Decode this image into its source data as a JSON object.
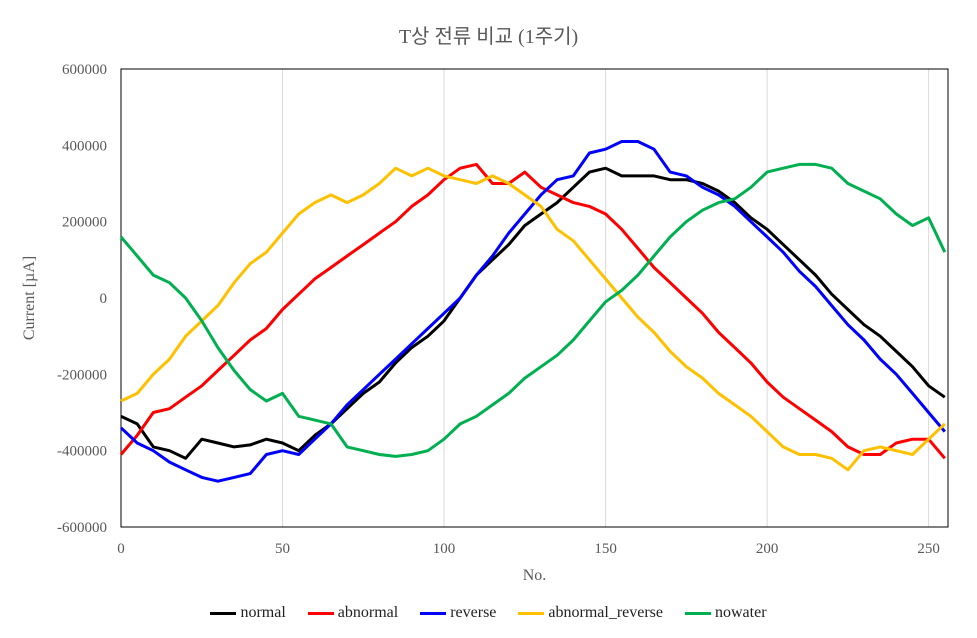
{
  "chart_data": {
    "type": "line",
    "title": "T상 전류 비교 (1주기)",
    "xlabel": "No.",
    "ylabel": "Current [µA]",
    "xlim": [
      0,
      256
    ],
    "ylim": [
      -600000,
      600000
    ],
    "x_ticks": [
      "0",
      "50",
      "100",
      "150",
      "200",
      "250"
    ],
    "y_ticks": [
      "-600000",
      "-400000",
      "-200000",
      "0",
      "200000",
      "400000",
      "600000"
    ],
    "grid": "vertical",
    "legend_position": "bottom",
    "series": [
      {
        "name": "normal",
        "color": "#000000",
        "points": [
          [
            0,
            -310000
          ],
          [
            5,
            -330000
          ],
          [
            10,
            -390000
          ],
          [
            15,
            -400000
          ],
          [
            20,
            -420000
          ],
          [
            25,
            -370000
          ],
          [
            30,
            -380000
          ],
          [
            35,
            -390000
          ],
          [
            40,
            -385000
          ],
          [
            45,
            -370000
          ],
          [
            50,
            -380000
          ],
          [
            55,
            -400000
          ],
          [
            60,
            -360000
          ],
          [
            65,
            -330000
          ],
          [
            70,
            -290000
          ],
          [
            75,
            -250000
          ],
          [
            80,
            -220000
          ],
          [
            85,
            -170000
          ],
          [
            90,
            -130000
          ],
          [
            95,
            -100000
          ],
          [
            100,
            -60000
          ],
          [
            105,
            0
          ],
          [
            110,
            60000
          ],
          [
            115,
            100000
          ],
          [
            120,
            140000
          ],
          [
            125,
            190000
          ],
          [
            130,
            220000
          ],
          [
            135,
            250000
          ],
          [
            140,
            290000
          ],
          [
            145,
            330000
          ],
          [
            150,
            340000
          ],
          [
            155,
            320000
          ],
          [
            160,
            320000
          ],
          [
            165,
            320000
          ],
          [
            170,
            310000
          ],
          [
            175,
            310000
          ],
          [
            180,
            300000
          ],
          [
            185,
            280000
          ],
          [
            190,
            250000
          ],
          [
            195,
            210000
          ],
          [
            200,
            180000
          ],
          [
            205,
            140000
          ],
          [
            210,
            100000
          ],
          [
            215,
            60000
          ],
          [
            220,
            10000
          ],
          [
            225,
            -30000
          ],
          [
            230,
            -70000
          ],
          [
            235,
            -100000
          ],
          [
            240,
            -140000
          ],
          [
            245,
            -180000
          ],
          [
            250,
            -230000
          ],
          [
            255,
            -260000
          ]
        ]
      },
      {
        "name": "abnormal",
        "color": "#ff0000",
        "points": [
          [
            0,
            -410000
          ],
          [
            5,
            -360000
          ],
          [
            10,
            -300000
          ],
          [
            15,
            -290000
          ],
          [
            20,
            -260000
          ],
          [
            25,
            -230000
          ],
          [
            30,
            -190000
          ],
          [
            35,
            -150000
          ],
          [
            40,
            -110000
          ],
          [
            45,
            -80000
          ],
          [
            50,
            -30000
          ],
          [
            55,
            10000
          ],
          [
            60,
            50000
          ],
          [
            65,
            80000
          ],
          [
            70,
            110000
          ],
          [
            75,
            140000
          ],
          [
            80,
            170000
          ],
          [
            85,
            200000
          ],
          [
            90,
            240000
          ],
          [
            95,
            270000
          ],
          [
            100,
            310000
          ],
          [
            105,
            340000
          ],
          [
            110,
            350000
          ],
          [
            115,
            300000
          ],
          [
            120,
            300000
          ],
          [
            125,
            330000
          ],
          [
            130,
            290000
          ],
          [
            135,
            270000
          ],
          [
            140,
            250000
          ],
          [
            145,
            240000
          ],
          [
            150,
            220000
          ],
          [
            155,
            180000
          ],
          [
            160,
            130000
          ],
          [
            165,
            80000
          ],
          [
            170,
            40000
          ],
          [
            175,
            0
          ],
          [
            180,
            -40000
          ],
          [
            185,
            -90000
          ],
          [
            190,
            -130000
          ],
          [
            195,
            -170000
          ],
          [
            200,
            -220000
          ],
          [
            205,
            -260000
          ],
          [
            210,
            -290000
          ],
          [
            215,
            -320000
          ],
          [
            220,
            -350000
          ],
          [
            225,
            -390000
          ],
          [
            230,
            -410000
          ],
          [
            235,
            -410000
          ],
          [
            240,
            -380000
          ],
          [
            245,
            -370000
          ],
          [
            250,
            -370000
          ],
          [
            255,
            -420000
          ]
        ]
      },
      {
        "name": "reverse",
        "color": "#0000ff",
        "points": [
          [
            0,
            -340000
          ],
          [
            5,
            -380000
          ],
          [
            10,
            -400000
          ],
          [
            15,
            -430000
          ],
          [
            20,
            -450000
          ],
          [
            25,
            -470000
          ],
          [
            30,
            -480000
          ],
          [
            35,
            -470000
          ],
          [
            40,
            -460000
          ],
          [
            45,
            -410000
          ],
          [
            50,
            -400000
          ],
          [
            55,
            -410000
          ],
          [
            60,
            -370000
          ],
          [
            65,
            -330000
          ],
          [
            70,
            -280000
          ],
          [
            75,
            -240000
          ],
          [
            80,
            -200000
          ],
          [
            85,
            -160000
          ],
          [
            90,
            -120000
          ],
          [
            95,
            -80000
          ],
          [
            100,
            -40000
          ],
          [
            105,
            0
          ],
          [
            110,
            60000
          ],
          [
            115,
            110000
          ],
          [
            120,
            170000
          ],
          [
            125,
            220000
          ],
          [
            130,
            270000
          ],
          [
            135,
            310000
          ],
          [
            140,
            320000
          ],
          [
            145,
            380000
          ],
          [
            150,
            390000
          ],
          [
            155,
            410000
          ],
          [
            160,
            410000
          ],
          [
            165,
            390000
          ],
          [
            170,
            330000
          ],
          [
            175,
            320000
          ],
          [
            180,
            290000
          ],
          [
            185,
            270000
          ],
          [
            190,
            240000
          ],
          [
            195,
            200000
          ],
          [
            200,
            160000
          ],
          [
            205,
            120000
          ],
          [
            210,
            70000
          ],
          [
            215,
            30000
          ],
          [
            220,
            -20000
          ],
          [
            225,
            -70000
          ],
          [
            230,
            -110000
          ],
          [
            235,
            -160000
          ],
          [
            240,
            -200000
          ],
          [
            245,
            -250000
          ],
          [
            250,
            -300000
          ],
          [
            255,
            -350000
          ]
        ]
      },
      {
        "name": "abnormal_reverse",
        "color": "#ffc000",
        "points": [
          [
            0,
            -270000
          ],
          [
            5,
            -250000
          ],
          [
            10,
            -200000
          ],
          [
            15,
            -160000
          ],
          [
            20,
            -100000
          ],
          [
            25,
            -60000
          ],
          [
            30,
            -20000
          ],
          [
            35,
            40000
          ],
          [
            40,
            90000
          ],
          [
            45,
            120000
          ],
          [
            50,
            170000
          ],
          [
            55,
            220000
          ],
          [
            60,
            250000
          ],
          [
            65,
            270000
          ],
          [
            70,
            250000
          ],
          [
            75,
            270000
          ],
          [
            80,
            300000
          ],
          [
            85,
            340000
          ],
          [
            90,
            320000
          ],
          [
            95,
            340000
          ],
          [
            100,
            320000
          ],
          [
            105,
            310000
          ],
          [
            110,
            300000
          ],
          [
            115,
            320000
          ],
          [
            120,
            300000
          ],
          [
            125,
            270000
          ],
          [
            130,
            240000
          ],
          [
            135,
            180000
          ],
          [
            140,
            150000
          ],
          [
            145,
            100000
          ],
          [
            150,
            50000
          ],
          [
            155,
            0
          ],
          [
            160,
            -50000
          ],
          [
            165,
            -90000
          ],
          [
            170,
            -140000
          ],
          [
            175,
            -180000
          ],
          [
            180,
            -210000
          ],
          [
            185,
            -250000
          ],
          [
            190,
            -280000
          ],
          [
            195,
            -310000
          ],
          [
            200,
            -350000
          ],
          [
            205,
            -390000
          ],
          [
            210,
            -410000
          ],
          [
            215,
            -410000
          ],
          [
            220,
            -420000
          ],
          [
            225,
            -450000
          ],
          [
            230,
            -400000
          ],
          [
            235,
            -390000
          ],
          [
            240,
            -400000
          ],
          [
            245,
            -410000
          ],
          [
            250,
            -370000
          ],
          [
            255,
            -330000
          ]
        ]
      },
      {
        "name": "nowater",
        "color": "#00b050",
        "points": [
          [
            0,
            160000
          ],
          [
            5,
            110000
          ],
          [
            10,
            60000
          ],
          [
            15,
            40000
          ],
          [
            20,
            0
          ],
          [
            25,
            -60000
          ],
          [
            30,
            -130000
          ],
          [
            35,
            -190000
          ],
          [
            40,
            -240000
          ],
          [
            45,
            -270000
          ],
          [
            50,
            -250000
          ],
          [
            55,
            -310000
          ],
          [
            60,
            -320000
          ],
          [
            65,
            -330000
          ],
          [
            70,
            -390000
          ],
          [
            75,
            -400000
          ],
          [
            80,
            -410000
          ],
          [
            85,
            -415000
          ],
          [
            90,
            -410000
          ],
          [
            95,
            -400000
          ],
          [
            100,
            -370000
          ],
          [
            105,
            -330000
          ],
          [
            110,
            -310000
          ],
          [
            115,
            -280000
          ],
          [
            120,
            -250000
          ],
          [
            125,
            -210000
          ],
          [
            130,
            -180000
          ],
          [
            135,
            -150000
          ],
          [
            140,
            -110000
          ],
          [
            145,
            -60000
          ],
          [
            150,
            -10000
          ],
          [
            155,
            20000
          ],
          [
            160,
            60000
          ],
          [
            165,
            110000
          ],
          [
            170,
            160000
          ],
          [
            175,
            200000
          ],
          [
            180,
            230000
          ],
          [
            185,
            250000
          ],
          [
            190,
            260000
          ],
          [
            195,
            290000
          ],
          [
            200,
            330000
          ],
          [
            205,
            340000
          ],
          [
            210,
            350000
          ],
          [
            215,
            350000
          ],
          [
            220,
            340000
          ],
          [
            225,
            300000
          ],
          [
            230,
            280000
          ],
          [
            235,
            260000
          ],
          [
            240,
            220000
          ],
          [
            245,
            190000
          ],
          [
            250,
            210000
          ],
          [
            255,
            120000
          ]
        ]
      }
    ]
  }
}
